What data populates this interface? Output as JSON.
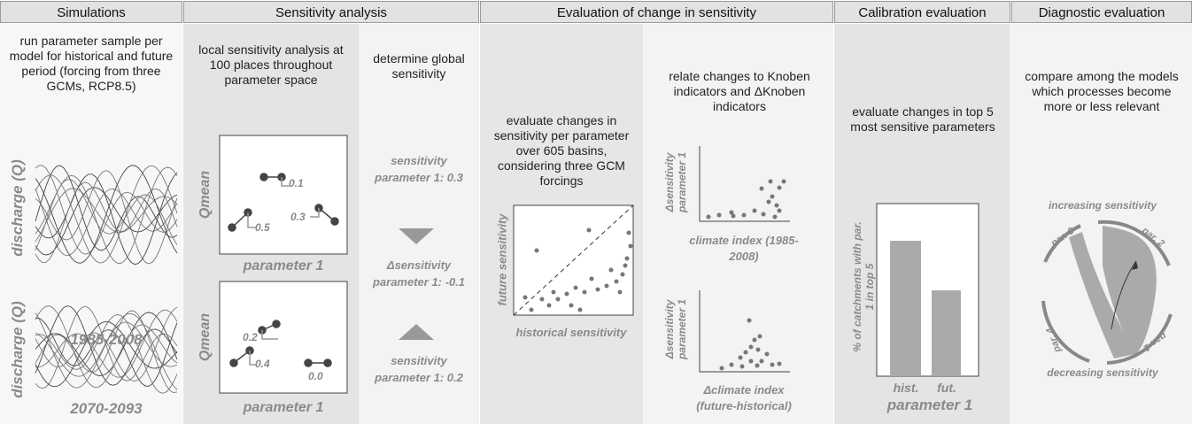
{
  "headers": [
    "Simulations",
    "Sensitivity analysis",
    "Evaluation of change in sensitivity",
    "Calibration evaluation",
    "Diagnostic evaluation"
  ],
  "simulations": {
    "description": "run parameter sample per model for historical and future period (forcing from three GCMs, RCP8.5)",
    "y_label": "discharge (Q)",
    "periods": [
      "1985-2008",
      "2070-2093"
    ]
  },
  "local_sensitivity": {
    "description": "local  sensitivity analysis at 100 places throughout parameter space",
    "y_label": "Qmean",
    "x_label": "parameter 1",
    "top_plot": [
      "0.1",
      "0.5",
      "0.3"
    ],
    "bottom_plot": [
      "0.2",
      "0.4",
      "0.0"
    ]
  },
  "global_sensitivity": {
    "description": "determine global sensitivity",
    "historical": "sensitivity parameter 1: 0.3",
    "change": "Δsensitivity parameter 1: -0.1",
    "future": "sensitivity parameter 1: 0.2"
  },
  "change_evaluation": {
    "description": "evaluate changes in sensitivity per parameter over 605 basins, considering three GCM forcings",
    "y_label": "future sensitivity",
    "x_label": "historical sensitivity"
  },
  "indicator_relation": {
    "description": "relate changes to Knoben indicators and ΔKnoben indicators",
    "y_label": "Δsensitivity parameter 1",
    "x_labels": [
      "climate index (1985-2008)",
      "Δclimate index (future-historical)"
    ]
  },
  "calibration": {
    "description": "evaluate changes in top 5 most sensitive parameters",
    "y_label": "% of catchments with par. 1 in top 5",
    "bars": [
      "hist.",
      "fut."
    ],
    "x_label": "parameter 1"
  },
  "diagnostic": {
    "description": "compare among the models which processes become more or less relevant",
    "top_label": "increasing sensitivity",
    "bottom_label": "decreasing sensitivity",
    "parameters": [
      "par. 3",
      "par. 2",
      "par. 4",
      "par. 1"
    ]
  }
}
